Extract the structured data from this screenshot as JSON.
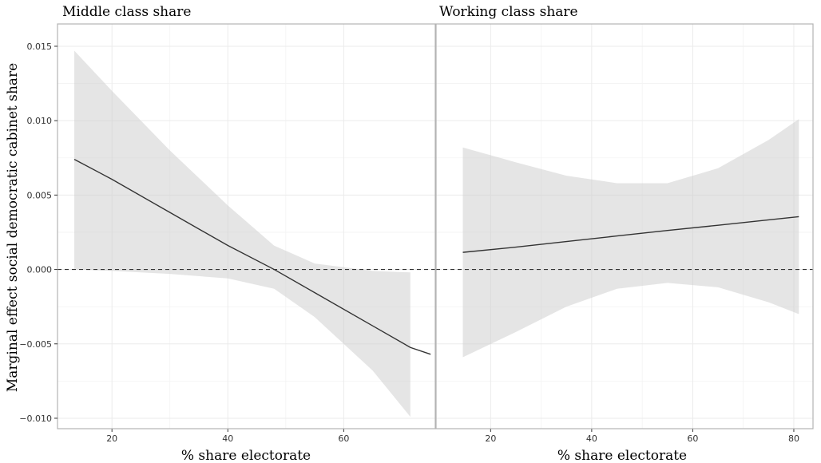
{
  "chart_data": {
    "type": "line",
    "ylabel": "Marginal effect social democratic cabinet share",
    "ylim": [
      -0.0107,
      0.0165
    ],
    "yticks": [
      -0.01,
      -0.005,
      0.0,
      0.005,
      0.01,
      0.015
    ],
    "ytick_labels": [
      "−0.010",
      "−0.005",
      "0.000",
      "0.005",
      "0.010",
      "0.015"
    ],
    "reference_line": {
      "y": 0,
      "style": "dashed"
    },
    "grid": true,
    "panels": [
      {
        "title": "Middle class share",
        "xlabel": "% share electorate",
        "xlim": [
          10.6,
          75.8
        ],
        "xticks": [
          20,
          40,
          60
        ],
        "xtick_labels": [
          "20",
          "40",
          "60"
        ],
        "x": [
          13.5,
          20,
          30,
          40,
          48,
          55,
          65,
          71.5,
          75
        ],
        "fit": [
          0.0074,
          0.00606,
          0.00383,
          0.00161,
          0.0,
          -0.00156,
          -0.00379,
          -0.00524,
          -0.0057
        ],
        "lower": [
          0.0,
          -0.0001,
          -0.0003,
          -0.0006,
          -0.0013,
          -0.0032,
          -0.0068,
          -0.0099,
          null
        ],
        "upper": [
          0.0147,
          0.012,
          0.008,
          0.0043,
          0.0016,
          0.0004,
          -0.0001,
          -0.0002,
          null
        ]
      },
      {
        "title": "Working class share",
        "xlabel": "% share electorate",
        "xlim": [
          9.2,
          83.8
        ],
        "xticks": [
          20,
          40,
          60,
          80
        ],
        "xtick_labels": [
          "20",
          "40",
          "60",
          "80"
        ],
        "x": [
          14.5,
          25,
          35,
          45,
          55,
          65,
          75,
          81
        ],
        "fit": [
          0.00115,
          0.0015,
          0.00188,
          0.00225,
          0.00262,
          0.00297,
          0.00333,
          0.00355
        ],
        "lower": [
          -0.0059,
          -0.0042,
          -0.0025,
          -0.0013,
          -0.0009,
          -0.0012,
          -0.0022,
          -0.003
        ],
        "upper": [
          0.0082,
          0.0072,
          0.0063,
          0.0058,
          0.0058,
          0.0068,
          0.0087,
          0.0101
        ]
      }
    ]
  }
}
